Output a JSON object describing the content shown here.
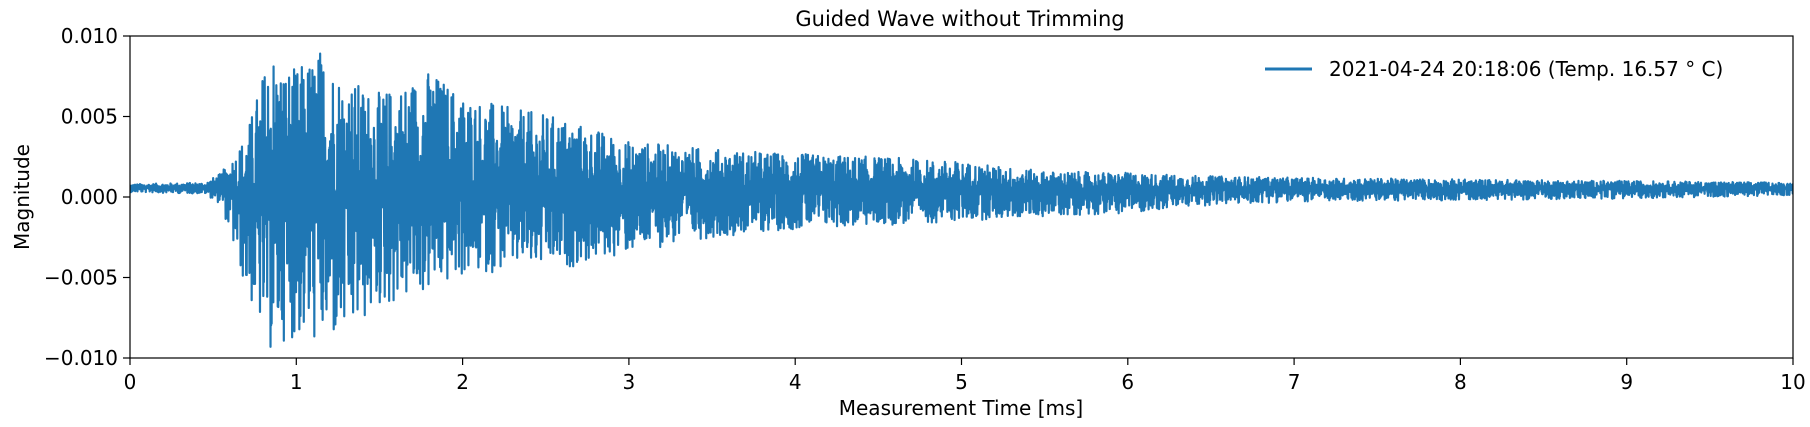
{
  "chart_data": {
    "type": "line",
    "title": "Guided Wave without Trimming",
    "xlabel": "Measurement Time [ms]",
    "ylabel": "Magnitude",
    "xlim": [
      0,
      10
    ],
    "ylim": [
      -0.01,
      0.01
    ],
    "x_ticks": [
      0,
      1,
      2,
      3,
      4,
      5,
      6,
      7,
      8,
      9,
      10
    ],
    "x_tick_labels": [
      "0",
      "1",
      "2",
      "3",
      "4",
      "5",
      "6",
      "7",
      "8",
      "9",
      "10"
    ],
    "y_ticks": [
      -0.01,
      -0.005,
      0.0,
      0.005,
      0.01
    ],
    "y_tick_labels": [
      "−0.010",
      "−0.005",
      "0.000",
      "0.005",
      "0.010"
    ],
    "grid": false,
    "legend_position": "top-right",
    "color": "#1f77b4",
    "series": [
      {
        "name": "2021-04-24 20:18:06 (Temp. 16.57 ° C)",
        "baseline": 0.0006,
        "envelope": {
          "x": [
            0,
            0.45,
            0.55,
            0.7,
            0.85,
            0.9,
            1.0,
            1.15,
            1.3,
            1.5,
            1.8,
            2.0,
            2.3,
            2.6,
            3.0,
            3.5,
            4.0,
            4.5,
            5.0,
            5.5,
            6.0,
            6.5,
            7.0,
            8.0,
            9.0,
            10
          ],
          "upper": [
            0.0008,
            0.0009,
            0.0015,
            0.004,
            0.0097,
            0.0085,
            0.008,
            0.0094,
            0.0075,
            0.0065,
            0.008,
            0.0065,
            0.0055,
            0.005,
            0.0035,
            0.003,
            0.0027,
            0.0025,
            0.0022,
            0.0016,
            0.0015,
            0.0013,
            0.0012,
            0.0011,
            0.001,
            0.0009
          ],
          "lower": [
            0.0003,
            0.0002,
            -0.0005,
            -0.006,
            -0.0098,
            -0.009,
            -0.0088,
            -0.0093,
            -0.009,
            -0.007,
            -0.006,
            -0.005,
            -0.0045,
            -0.0045,
            -0.0035,
            -0.0025,
            -0.002,
            -0.0018,
            -0.0015,
            -0.0012,
            -0.001,
            -0.0005,
            -0.0003,
            -0.0002,
            -0.0001,
            0.0001
          ]
        }
      }
    ]
  }
}
